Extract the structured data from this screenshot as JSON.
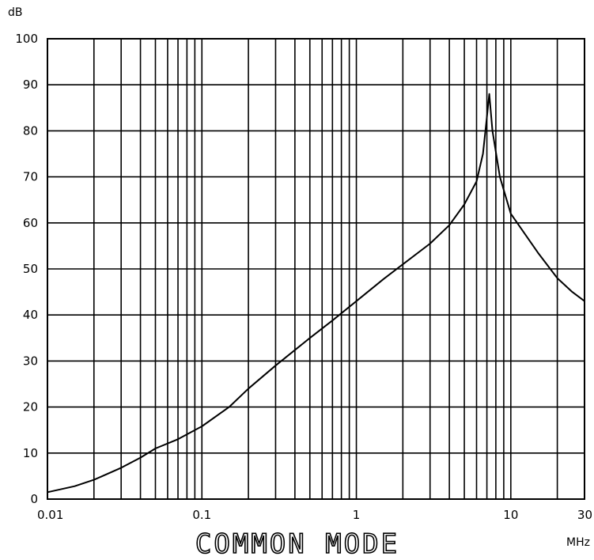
{
  "chart_data": {
    "type": "line",
    "title": "COMMON MODE",
    "xlabel": "MHz",
    "ylabel": "dB",
    "x_scale": "log",
    "xlim": [
      0.01,
      30
    ],
    "ylim": [
      0,
      100
    ],
    "grid": true,
    "x_tick_labels": [
      {
        "value": 0.01,
        "label": "0.01"
      },
      {
        "value": 0.1,
        "label": "0.1"
      },
      {
        "value": 1,
        "label": "1"
      },
      {
        "value": 10,
        "label": "10"
      },
      {
        "value": 30,
        "label": "30"
      }
    ],
    "y_tick_labels": [
      "0",
      "10",
      "20",
      "30",
      "40",
      "50",
      "60",
      "70",
      "80",
      "90",
      "100"
    ],
    "series": [
      {
        "x": [
          0.01,
          0.015,
          0.02,
          0.03,
          0.04,
          0.05,
          0.07,
          0.1,
          0.15,
          0.2,
          0.3,
          0.5,
          0.7,
          1,
          1.5,
          2,
          3,
          4,
          5,
          6,
          6.6,
          7.0,
          7.25,
          7.6,
          8.5,
          10,
          15,
          20,
          25,
          30
        ],
        "y": [
          1.5,
          2.8,
          4.2,
          6.8,
          9.0,
          11.0,
          13.0,
          15.8,
          20.0,
          24.0,
          29.0,
          35.0,
          38.8,
          43.0,
          47.8,
          51.0,
          55.5,
          59.5,
          64.0,
          69.0,
          75.0,
          83.0,
          88.0,
          80.0,
          70.0,
          62.0,
          53.5,
          48.0,
          45.0,
          43.0
        ]
      }
    ],
    "colors": {
      "line": "#000000",
      "grid": "#000000",
      "background": "#ffffff"
    }
  }
}
